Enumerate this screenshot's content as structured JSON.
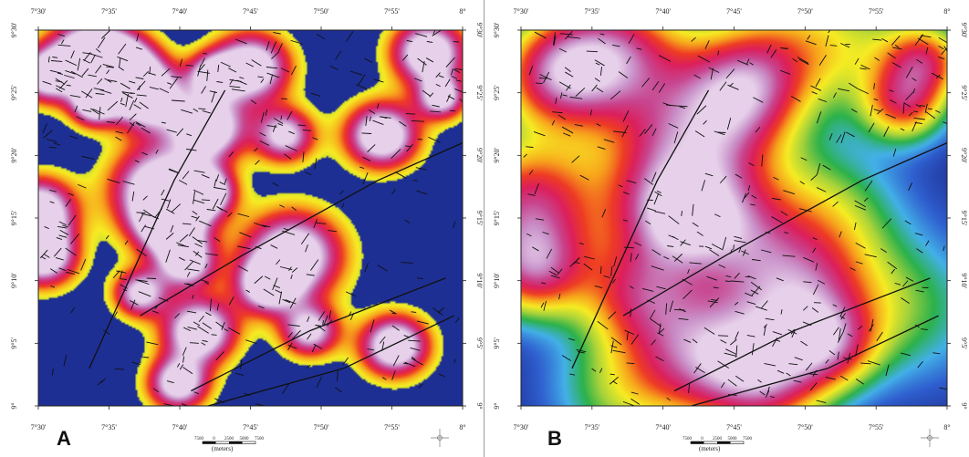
{
  "panels": [
    {
      "letter": "A",
      "map_background": "#1d2f93",
      "top_ticks": [
        "7°30'",
        "7°35'",
        "7°40'",
        "7°45'",
        "7°50'",
        "7°55'",
        "8°"
      ],
      "bottom_ticks": [
        "7°30'",
        "7°35'",
        "7°40'",
        "7°45'",
        "7°50'",
        "7°55'",
        "8°"
      ],
      "left_ticks": [
        "9°30'",
        "9°25'",
        "9°20'",
        "9°15'",
        "9°10'",
        "9°5'",
        "9°"
      ],
      "right_ticks": [
        "9°30'",
        "9°25'",
        "9°20'",
        "9°15'",
        "9°10'",
        "9°5'",
        "9°"
      ],
      "scale_labels": [
        "7500",
        "0",
        "2500",
        "5000",
        "7500"
      ],
      "scale_units": "(meters)",
      "hotspots": [
        {
          "lon": 7.56,
          "lat": 9.47,
          "r": 0.032,
          "w": 1.0
        },
        {
          "lon": 7.6,
          "lat": 9.45,
          "r": 0.03,
          "w": 1.0
        },
        {
          "lon": 7.63,
          "lat": 9.41,
          "r": 0.03,
          "w": 1.0
        },
        {
          "lon": 7.565,
          "lat": 9.4,
          "r": 0.02,
          "w": 0.8
        },
        {
          "lon": 7.51,
          "lat": 9.44,
          "r": 0.025,
          "w": 0.9
        },
        {
          "lon": 7.5,
          "lat": 9.26,
          "r": 0.03,
          "w": 1.0
        },
        {
          "lon": 7.505,
          "lat": 9.2,
          "r": 0.028,
          "w": 1.0
        },
        {
          "lon": 7.645,
          "lat": 9.29,
          "r": 0.04,
          "w": 1.0
        },
        {
          "lon": 7.655,
          "lat": 9.24,
          "r": 0.03,
          "w": 0.9
        },
        {
          "lon": 7.7,
          "lat": 9.37,
          "r": 0.03,
          "w": 1.0
        },
        {
          "lon": 7.75,
          "lat": 9.45,
          "r": 0.032,
          "w": 1.0
        },
        {
          "lon": 7.705,
          "lat": 9.44,
          "r": 0.02,
          "w": 0.7
        },
        {
          "lon": 7.7,
          "lat": 9.285,
          "r": 0.022,
          "w": 0.8
        },
        {
          "lon": 7.79,
          "lat": 9.36,
          "r": 0.025,
          "w": 0.8
        },
        {
          "lon": 7.8,
          "lat": 9.2,
          "r": 0.04,
          "w": 1.0
        },
        {
          "lon": 7.77,
          "lat": 9.16,
          "r": 0.025,
          "w": 0.8
        },
        {
          "lon": 7.82,
          "lat": 9.1,
          "r": 0.024,
          "w": 0.8
        },
        {
          "lon": 7.675,
          "lat": 9.19,
          "r": 0.024,
          "w": 0.8
        },
        {
          "lon": 7.62,
          "lat": 9.15,
          "r": 0.022,
          "w": 0.8
        },
        {
          "lon": 7.69,
          "lat": 9.1,
          "r": 0.03,
          "w": 1.0
        },
        {
          "lon": 7.665,
          "lat": 9.03,
          "r": 0.025,
          "w": 0.9
        },
        {
          "lon": 7.905,
          "lat": 9.36,
          "r": 0.03,
          "w": 1.0
        },
        {
          "lon": 7.96,
          "lat": 9.47,
          "r": 0.03,
          "w": 1.0
        },
        {
          "lon": 7.975,
          "lat": 9.41,
          "r": 0.02,
          "w": 0.8
        },
        {
          "lon": 7.92,
          "lat": 9.08,
          "r": 0.028,
          "w": 1.0
        }
      ]
    },
    {
      "letter": "B",
      "map_background": "#1d2f93",
      "top_ticks": [
        "7°30'",
        "7°35'",
        "7°40'",
        "7°45'",
        "7°50'",
        "7°55'",
        "8°"
      ],
      "bottom_ticks": [
        "7°30'",
        "7°35'",
        "7°40'",
        "7°45'",
        "7°50'",
        "7°55'",
        "8°"
      ],
      "left_ticks": [
        "9°30'",
        "9°25'",
        "9°20'",
        "9°15'",
        "9°10'",
        "9°5'",
        "9°"
      ],
      "right_ticks": [
        "9°30'",
        "9°25'",
        "9°20'",
        "9°15'",
        "9°10'",
        "9°5'",
        "9°"
      ],
      "scale_labels": [
        "7500",
        "0",
        "2500",
        "5000",
        "7500"
      ],
      "scale_units": "(meters)",
      "hotspots": [
        {
          "lon": 7.61,
          "lat": 9.47,
          "r": 0.06,
          "w": 1.0
        },
        {
          "lon": 7.54,
          "lat": 9.44,
          "r": 0.05,
          "w": 0.9
        },
        {
          "lon": 7.51,
          "lat": 9.27,
          "r": 0.06,
          "w": 1.0
        },
        {
          "lon": 7.515,
          "lat": 9.18,
          "r": 0.045,
          "w": 0.9
        },
        {
          "lon": 7.7,
          "lat": 9.34,
          "r": 0.07,
          "w": 1.1
        },
        {
          "lon": 7.68,
          "lat": 9.25,
          "r": 0.05,
          "w": 0.9
        },
        {
          "lon": 7.76,
          "lat": 9.42,
          "r": 0.05,
          "w": 0.8
        },
        {
          "lon": 7.64,
          "lat": 9.15,
          "r": 0.05,
          "w": 0.8
        },
        {
          "lon": 7.72,
          "lat": 9.07,
          "r": 0.06,
          "w": 1.0
        },
        {
          "lon": 7.79,
          "lat": 9.03,
          "r": 0.05,
          "w": 0.8
        },
        {
          "lon": 7.82,
          "lat": 9.15,
          "r": 0.06,
          "w": 1.0
        },
        {
          "lon": 7.86,
          "lat": 9.08,
          "r": 0.04,
          "w": 0.7
        },
        {
          "lon": 7.95,
          "lat": 9.4,
          "r": 0.035,
          "w": 0.8
        },
        {
          "lon": 7.975,
          "lat": 9.46,
          "r": 0.035,
          "w": 0.8
        },
        {
          "lon": 7.86,
          "lat": 9.26,
          "r": 0.06,
          "w": 0.45
        },
        {
          "lon": 7.95,
          "lat": 9.13,
          "r": 0.07,
          "w": 0.4
        },
        {
          "lon": 7.8,
          "lat": 9.48,
          "r": 0.06,
          "w": 0.45
        },
        {
          "lon": 7.62,
          "lat": 9.02,
          "r": 0.06,
          "w": 0.45
        },
        {
          "lon": 7.89,
          "lat": 9.48,
          "r": 0.06,
          "w": 0.4
        },
        {
          "lon": 7.75,
          "lat": 9.23,
          "r": 0.05,
          "w": 0.55
        }
      ]
    }
  ],
  "colors": {
    "ramp": [
      "#1d2f93",
      "#2f5fcf",
      "#43b0e8",
      "#2bb14c",
      "#a8d33a",
      "#f6ec23",
      "#f7a41c",
      "#ee3b24",
      "#dc1f5c",
      "#c8458f",
      "#c990c8",
      "#e6d0ea"
    ]
  }
}
